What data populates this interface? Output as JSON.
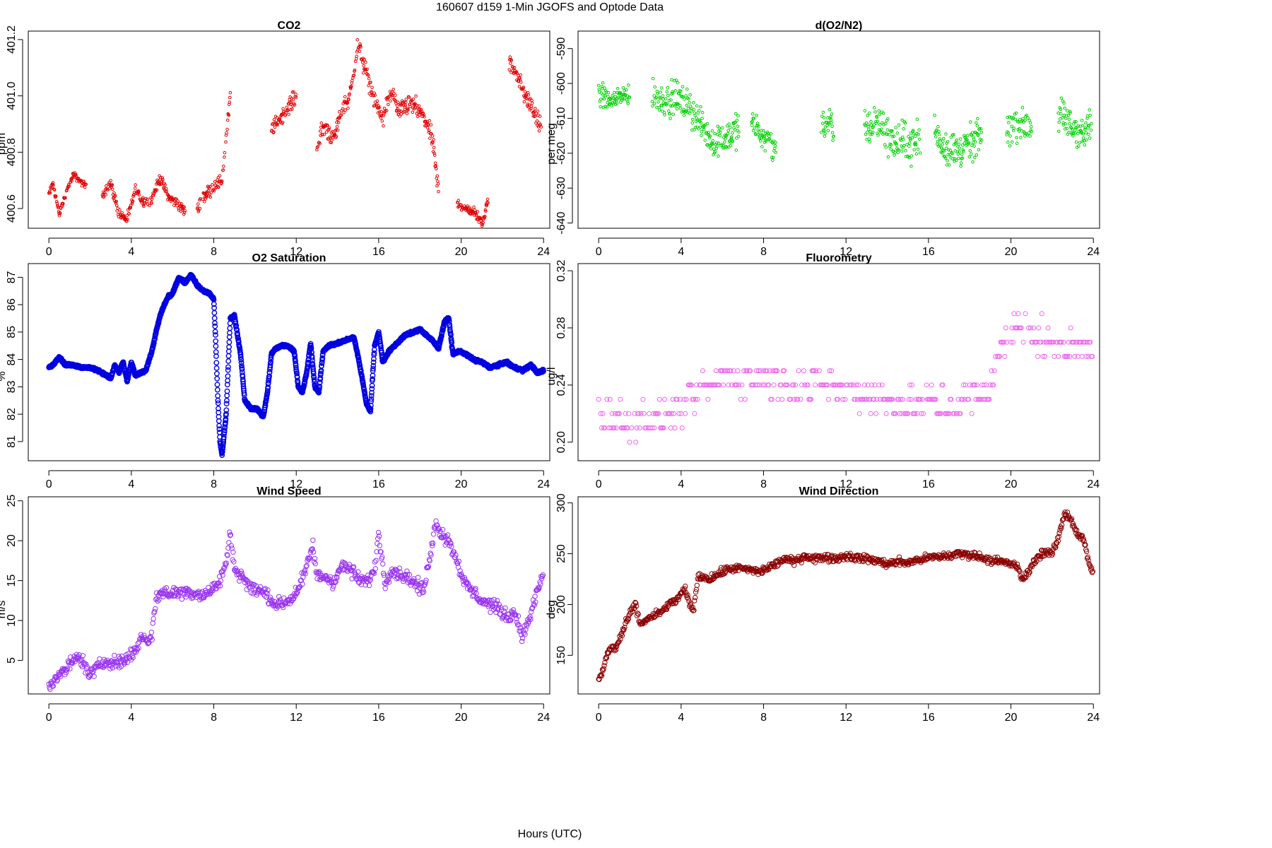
{
  "title": "160607   d159   1-Min  JGOFS and Optode Data",
  "xlabel": "Hours (UTC)",
  "chart_data": [
    {
      "id": "co2",
      "type": "scatter",
      "title": "CO2",
      "ylabel": "ppm",
      "color": "#e00000",
      "xlim": [
        -1,
        24.3
      ],
      "ylim": [
        400.53,
        401.23
      ],
      "xticks": [
        0,
        4,
        8,
        12,
        16,
        20,
        24
      ],
      "yticks": [
        400.6,
        400.8,
        401.0,
        401.2
      ],
      "ytick_labels": [
        "400.6",
        "400.8",
        "401.0",
        "401.2"
      ],
      "segments": [
        {
          "x": [
            0,
            0.2,
            0.5,
            0.9,
            1.2,
            1.6,
            1.8
          ],
          "y": [
            400.65,
            400.69,
            400.58,
            400.67,
            400.72,
            400.69,
            400.68
          ],
          "noise": 0.012
        },
        {
          "x": [
            2.6,
            3.0,
            3.4,
            3.8,
            4.2,
            4.5,
            4.9,
            5.4,
            5.8,
            6.2,
            6.6
          ],
          "y": [
            400.65,
            400.69,
            400.58,
            400.56,
            400.67,
            400.63,
            400.62,
            400.71,
            400.64,
            400.62,
            400.59
          ],
          "noise": 0.02
        },
        {
          "x": [
            7.2,
            7.6,
            8.0,
            8.4,
            8.8
          ],
          "y": [
            400.6,
            400.65,
            400.68,
            400.7,
            401.0
          ],
          "noise": 0.025
        },
        {
          "x": [
            10.8,
            11.2,
            11.6,
            12.0
          ],
          "y": [
            400.88,
            400.92,
            400.96,
            401.0
          ],
          "noise": 0.03
        },
        {
          "x": [
            13.0,
            13.4,
            13.8,
            14.2,
            14.6,
            15.0,
            15.4,
            15.8,
            16.2,
            16.6,
            17.0,
            17.4,
            17.8,
            18.2,
            18.6,
            18.9
          ],
          "y": [
            400.82,
            400.9,
            400.84,
            400.95,
            401.0,
            401.18,
            401.08,
            400.98,
            400.92,
            401.02,
            400.94,
            400.97,
            400.96,
            400.92,
            400.85,
            400.66
          ],
          "noise": 0.035
        },
        {
          "x": [
            19.8,
            20.2,
            20.6,
            21.0,
            21.3
          ],
          "y": [
            400.62,
            400.6,
            400.59,
            400.55,
            400.63
          ],
          "noise": 0.02
        },
        {
          "x": [
            22.3,
            22.7,
            23.1,
            23.5,
            23.9
          ],
          "y": [
            401.12,
            401.08,
            401.0,
            400.95,
            400.88
          ],
          "noise": 0.035
        }
      ],
      "marker": "dot"
    },
    {
      "id": "do2n2",
      "type": "scatter",
      "title": "d(O2/N2)",
      "ylabel": "per meg",
      "color": "#00d000",
      "xlim": [
        -1,
        24.3
      ],
      "ylim": [
        -641.5,
        -585
      ],
      "xticks": [
        0,
        4,
        8,
        12,
        16,
        20,
        24
      ],
      "yticks": [
        -590,
        -600,
        -610,
        -620,
        -630,
        -640
      ],
      "ytick_labels": [
        "-590",
        "-600",
        "-610",
        "-620",
        "-630",
        "-640"
      ],
      "segments": [
        {
          "x": [
            0,
            0.5,
            1.0,
            1.5
          ],
          "y": [
            -603,
            -605,
            -604,
            -603
          ],
          "noise": 4
        },
        {
          "x": [
            2.6,
            3.2,
            3.8,
            4.4,
            5.0,
            5.6,
            6.2,
            6.8
          ],
          "y": [
            -604,
            -605,
            -604,
            -607,
            -612,
            -617,
            -615,
            -613
          ],
          "noise": 5
        },
        {
          "x": [
            7.4,
            8.0,
            8.6
          ],
          "y": [
            -611,
            -615,
            -619
          ],
          "noise": 4
        },
        {
          "x": [
            10.8,
            11.4
          ],
          "y": [
            -610,
            -614
          ],
          "noise": 6
        },
        {
          "x": [
            12.9,
            13.6,
            14.3,
            15.0,
            15.6
          ],
          "y": [
            -613,
            -611,
            -617,
            -617,
            -616
          ],
          "noise": 6
        },
        {
          "x": [
            16.3,
            17.0,
            17.6,
            18.2,
            18.6
          ],
          "y": [
            -614,
            -619,
            -619,
            -617,
            -615
          ],
          "noise": 6
        },
        {
          "x": [
            19.8,
            20.4,
            21.0
          ],
          "y": [
            -613,
            -612,
            -612
          ],
          "noise": 5
        },
        {
          "x": [
            22.3,
            22.9,
            23.5,
            23.9
          ],
          "y": [
            -609,
            -612,
            -615,
            -612
          ],
          "noise": 5
        }
      ],
      "marker": "dot"
    },
    {
      "id": "o2sat",
      "type": "scatter",
      "title": "O2 Saturation",
      "ylabel": "%",
      "color": "#0000e0",
      "xlim": [
        -1,
        24.3
      ],
      "ylim": [
        80.3,
        87.5
      ],
      "xticks": [
        0,
        4,
        8,
        12,
        16,
        20,
        24
      ],
      "yticks": [
        81,
        82,
        83,
        84,
        85,
        86,
        87
      ],
      "ytick_labels": [
        "81",
        "82",
        "83",
        "84",
        "85",
        "86",
        "87"
      ],
      "series_line": {
        "x": [
          0,
          0.2,
          0.5,
          0.8,
          1.2,
          1.6,
          2.0,
          2.4,
          2.8,
          3.0,
          3.2,
          3.4,
          3.6,
          3.8,
          4.0,
          4.2,
          4.4,
          4.7,
          5.0,
          5.2,
          5.4,
          5.6,
          5.8,
          6.0,
          6.3,
          6.6,
          6.9,
          7.2,
          7.5,
          7.8,
          8.0,
          8.1,
          8.2,
          8.3,
          8.4,
          8.6,
          8.8,
          9.0,
          9.3,
          9.5,
          9.8,
          10.1,
          10.4,
          10.6,
          10.8,
          11.0,
          11.3,
          11.6,
          11.9,
          12.1,
          12.3,
          12.5,
          12.7,
          12.9,
          13.1,
          13.3,
          13.6,
          14.0,
          14.4,
          14.8,
          15.0,
          15.2,
          15.4,
          15.6,
          15.8,
          16.0,
          16.2,
          16.5,
          16.9,
          17.3,
          17.7,
          18.0,
          18.3,
          18.6,
          18.9,
          19.2,
          19.4,
          19.6,
          19.9,
          20.2,
          20.6,
          21.0,
          21.4,
          21.8,
          22.2,
          22.6,
          23.0,
          23.4,
          23.7,
          24.0
        ],
        "y": [
          83.7,
          83.8,
          84.1,
          83.8,
          83.8,
          83.7,
          83.7,
          83.6,
          83.4,
          83.3,
          83.8,
          83.5,
          83.9,
          83.2,
          83.9,
          83.4,
          83.5,
          83.6,
          84.3,
          85.0,
          85.6,
          86.0,
          86.3,
          86.4,
          87.0,
          86.8,
          87.1,
          86.7,
          86.5,
          86.4,
          86.2,
          84.5,
          82.5,
          81.0,
          80.5,
          82.0,
          85.5,
          85.6,
          84.2,
          82.5,
          82.2,
          82.2,
          81.9,
          82.8,
          84.2,
          84.4,
          84.5,
          84.5,
          84.3,
          83.0,
          82.8,
          83.5,
          84.6,
          83.0,
          82.8,
          84.3,
          84.5,
          84.6,
          84.7,
          84.8,
          84.1,
          83.3,
          82.4,
          82.1,
          84.5,
          85.0,
          83.9,
          84.3,
          84.6,
          84.9,
          85.0,
          85.1,
          84.9,
          84.7,
          84.4,
          85.4,
          85.5,
          84.2,
          84.3,
          84.2,
          84.0,
          83.9,
          83.7,
          83.8,
          83.9,
          83.7,
          83.6,
          83.8,
          83.5,
          83.6
        ]
      },
      "marker": "circle"
    },
    {
      "id": "fluoro",
      "type": "scatter",
      "title": "Fluorometry",
      "ylabel": "ug/l",
      "color": "#ee66ee",
      "xlim": [
        -1,
        24.3
      ],
      "ylim": [
        0.187,
        0.325
      ],
      "xticks": [
        0,
        4,
        8,
        12,
        16,
        20,
        24
      ],
      "yticks": [
        0.2,
        0.24,
        0.28,
        0.32
      ],
      "ytick_labels": [
        "0.20",
        "0.24",
        "0.28",
        "0.32"
      ],
      "levels": [
        0.19,
        0.2,
        0.21,
        0.22,
        0.23,
        0.24,
        0.25,
        0.26,
        0.27,
        0.28,
        0.29,
        0.3,
        0.31,
        0.32
      ],
      "trend": {
        "x": [
          0,
          2,
          4,
          5,
          6,
          8,
          10,
          11,
          12,
          14,
          16,
          18,
          19,
          19.5,
          20.5,
          21.5,
          22.5,
          24
        ],
        "y": [
          0.22,
          0.215,
          0.22,
          0.235,
          0.245,
          0.245,
          0.24,
          0.24,
          0.235,
          0.23,
          0.225,
          0.23,
          0.24,
          0.265,
          0.285,
          0.27,
          0.265,
          0.27
        ]
      },
      "marker": "circle"
    },
    {
      "id": "wspd",
      "type": "scatter",
      "title": "Wind Speed",
      "ylabel": "m/s",
      "color": "#9933ee",
      "xlim": [
        -1,
        24.3
      ],
      "ylim": [
        0.8,
        25.5
      ],
      "xticks": [
        0,
        4,
        8,
        12,
        16,
        20,
        24
      ],
      "yticks": [
        5,
        10,
        15,
        20,
        25
      ],
      "ytick_labels": [
        "5",
        "10",
        "15",
        "20",
        "25"
      ],
      "series_line": {
        "x": [
          0,
          0.4,
          0.8,
          1.2,
          1.5,
          1.8,
          2.0,
          2.4,
          2.8,
          3.2,
          3.6,
          4.0,
          4.2,
          4.5,
          4.8,
          5.0,
          5.2,
          5.6,
          6.0,
          6.5,
          7.0,
          7.5,
          8.0,
          8.3,
          8.6,
          8.8,
          9.0,
          9.4,
          9.8,
          10.2,
          10.6,
          11.0,
          11.4,
          11.8,
          12.2,
          12.5,
          12.8,
          13.0,
          13.4,
          13.8,
          14.2,
          14.6,
          15.0,
          15.4,
          15.8,
          16.0,
          16.3,
          16.6,
          17.0,
          17.4,
          17.8,
          18.2,
          18.5,
          18.8,
          19.0,
          19.4,
          19.8,
          20.2,
          20.6,
          21.0,
          21.4,
          21.8,
          22.2,
          22.6,
          23.0,
          23.4,
          23.8,
          24.0
        ],
        "y": [
          2.0,
          2.8,
          3.8,
          5.0,
          5.5,
          4.0,
          3.2,
          4.2,
          5.0,
          4.8,
          4.8,
          5.8,
          6.2,
          8.0,
          7.6,
          8.0,
          13.0,
          13.5,
          13.4,
          13.6,
          13.5,
          13.2,
          14.0,
          15.0,
          17.2,
          21.0,
          16.5,
          15.5,
          14.0,
          13.8,
          13.2,
          12.0,
          12.2,
          12.8,
          14.5,
          16.5,
          19.5,
          15.5,
          15.5,
          14.8,
          16.8,
          16.5,
          15.2,
          14.8,
          16.2,
          21.2,
          14.5,
          16.5,
          15.8,
          15.5,
          14.5,
          13.8,
          18.5,
          22.5,
          21.0,
          20.0,
          17.5,
          14.5,
          13.5,
          12.5,
          12.0,
          11.5,
          10.5,
          11.0,
          8.0,
          11.0,
          14.5,
          16.0
        ]
      },
      "marker": "circle"
    },
    {
      "id": "wdir",
      "type": "scatter",
      "title": "Wind Direction",
      "ylabel": "deg",
      "color": "#8b0000",
      "xlim": [
        -1,
        24.3
      ],
      "ylim": [
        112,
        306
      ],
      "xticks": [
        0,
        4,
        8,
        12,
        16,
        20,
        24
      ],
      "yticks": [
        150,
        200,
        250,
        300
      ],
      "ytick_labels": [
        "150",
        "200",
        "250",
        "300"
      ],
      "series_line": {
        "x": [
          0,
          0.2,
          0.4,
          0.6,
          0.8,
          1.0,
          1.2,
          1.5,
          1.8,
          2.0,
          2.3,
          2.6,
          3.0,
          3.4,
          3.8,
          4.2,
          4.4,
          4.6,
          4.8,
          5.0,
          5.4,
          5.8,
          6.2,
          6.6,
          7.0,
          7.4,
          7.8,
          8.2,
          8.6,
          9.0,
          9.5,
          10.0,
          10.5,
          11.0,
          11.5,
          12.0,
          12.5,
          13.0,
          13.5,
          14.0,
          14.5,
          15.0,
          15.5,
          16.0,
          16.5,
          17.0,
          17.5,
          18.0,
          18.5,
          19.0,
          19.5,
          20.0,
          20.3,
          20.5,
          20.8,
          21.2,
          21.6,
          22.0,
          22.3,
          22.6,
          22.9,
          23.2,
          23.5,
          23.8,
          24.0
        ],
        "y": [
          125,
          135,
          150,
          158,
          156,
          165,
          175,
          190,
          200,
          180,
          185,
          188,
          192,
          200,
          205,
          215,
          200,
          195,
          225,
          228,
          225,
          230,
          234,
          236,
          235,
          234,
          232,
          236,
          240,
          245,
          242,
          248,
          245,
          247,
          245,
          248,
          246,
          245,
          243,
          240,
          242,
          241,
          244,
          246,
          247,
          248,
          250,
          249,
          247,
          244,
          242,
          240,
          238,
          225,
          230,
          245,
          252,
          250,
          265,
          290,
          285,
          270,
          265,
          240,
          230
        ]
      },
      "marker": "circle"
    }
  ]
}
